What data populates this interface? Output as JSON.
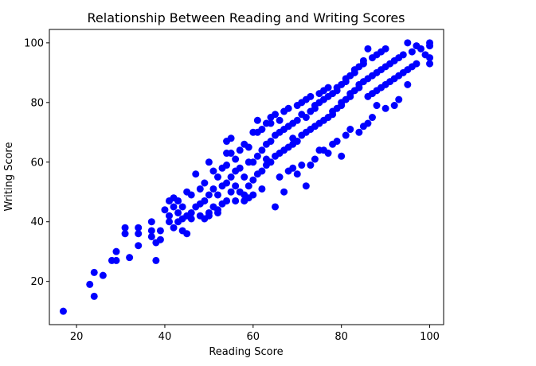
{
  "chart_data": {
    "type": "scatter",
    "title": "Relationship Between Reading and Writing Scores",
    "xlabel": "Reading Score",
    "ylabel": "Writing Score",
    "xlim": [
      13.85,
      103.15
    ],
    "ylim": [
      5.5,
      104.5
    ],
    "xticks": [
      20,
      40,
      60,
      80,
      100
    ],
    "yticks": [
      20,
      40,
      60,
      80,
      100
    ],
    "grid": false,
    "legend": "none",
    "marker_color": "#0000ff",
    "series": [
      {
        "x": [
          17,
          23,
          24,
          24,
          26,
          28,
          29,
          29,
          31,
          31,
          32,
          34,
          34,
          34,
          37,
          37,
          37,
          38,
          38,
          39,
          39,
          40,
          41,
          41,
          42,
          42,
          42,
          43,
          43,
          43,
          44,
          44,
          45,
          45,
          45,
          46,
          46,
          47,
          47,
          48,
          48,
          49,
          49,
          49,
          50,
          50,
          50,
          51,
          51,
          51,
          52,
          52,
          52,
          53,
          53,
          53,
          54,
          54,
          54,
          54,
          55,
          55,
          55,
          56,
          56,
          56,
          57,
          57,
          57,
          58,
          58,
          58,
          59,
          59,
          59,
          60,
          60,
          60,
          61,
          61,
          61,
          62,
          62,
          62,
          63,
          63,
          63,
          64,
          64,
          64,
          65,
          65,
          65,
          66,
          66,
          66,
          67,
          67,
          67,
          68,
          68,
          68,
          69,
          69,
          69,
          70,
          70,
          70,
          71,
          71,
          71,
          72,
          72,
          72,
          73,
          73,
          73,
          74,
          74,
          74,
          75,
          75,
          75,
          76,
          76,
          76,
          77,
          77,
          77,
          78,
          78,
          78,
          79,
          79,
          79,
          80,
          80,
          80,
          81,
          81,
          81,
          82,
          82,
          82,
          83,
          83,
          83,
          84,
          84,
          84,
          85,
          85,
          85,
          86,
          86,
          86,
          87,
          87,
          87,
          88,
          88,
          88,
          89,
          89,
          89,
          90,
          90,
          90,
          91,
          91,
          92,
          92,
          93,
          93,
          94,
          94,
          95,
          95,
          96,
          96,
          97,
          97,
          98,
          99,
          100,
          100,
          100,
          100,
          54,
          55,
          61,
          63,
          64,
          73,
          80,
          95,
          86,
          88,
          41,
          65,
          72,
          46,
          50,
          59,
          67,
          70,
          77,
          84,
          90,
          52,
          56,
          62,
          68,
          74,
          78,
          82,
          48,
          58,
          66,
          71,
          75,
          79,
          85,
          92,
          44,
          60,
          69,
          76,
          81,
          87,
          93
        ],
        "y": [
          10,
          19,
          15,
          23,
          22,
          27,
          27,
          30,
          36,
          38,
          28,
          32,
          36,
          38,
          37,
          35,
          40,
          27,
          33,
          34,
          37,
          44,
          42,
          47,
          38,
          45,
          48,
          40,
          43,
          47,
          41,
          45,
          36,
          42,
          50,
          43,
          49,
          45,
          56,
          46,
          51,
          41,
          47,
          53,
          42,
          49,
          60,
          45,
          51,
          57,
          43,
          49,
          55,
          46,
          52,
          58,
          47,
          53,
          59,
          67,
          50,
          55,
          63,
          52,
          57,
          61,
          50,
          58,
          64,
          49,
          55,
          66,
          52,
          60,
          65,
          54,
          60,
          70,
          56,
          62,
          74,
          57,
          64,
          71,
          59,
          66,
          73,
          60,
          67,
          75,
          62,
          69,
          76,
          63,
          70,
          74,
          64,
          71,
          77,
          65,
          72,
          78,
          66,
          73,
          68,
          74,
          79,
          67,
          76,
          80,
          69,
          75,
          81,
          70,
          77,
          82,
          71,
          78,
          72,
          79,
          83,
          73,
          80,
          84,
          74,
          81,
          85,
          75,
          82,
          76,
          83,
          77,
          84,
          78,
          85,
          79,
          86,
          80,
          87,
          81,
          88,
          82,
          89,
          83,
          90,
          84,
          91,
          85,
          92,
          86,
          93,
          87,
          94,
          98,
          82,
          88,
          95,
          83,
          89,
          84,
          90,
          96,
          85,
          91,
          97,
          86,
          92,
          98,
          87,
          93,
          88,
          94,
          89,
          95,
          90,
          96,
          91,
          100,
          92,
          97,
          93,
          99,
          98,
          96,
          100,
          99,
          95,
          93,
          63,
          68,
          70,
          61,
          73,
          59,
          62,
          86,
          73,
          79,
          40,
          45,
          52,
          41,
          43,
          48,
          50,
          56,
          63,
          70,
          78,
          44,
          47,
          51,
          57,
          61,
          66,
          71,
          42,
          47,
          55,
          59,
          64,
          67,
          72,
          79,
          37,
          49,
          58,
          64,
          69,
          75,
          81
        ]
      }
    ]
  }
}
